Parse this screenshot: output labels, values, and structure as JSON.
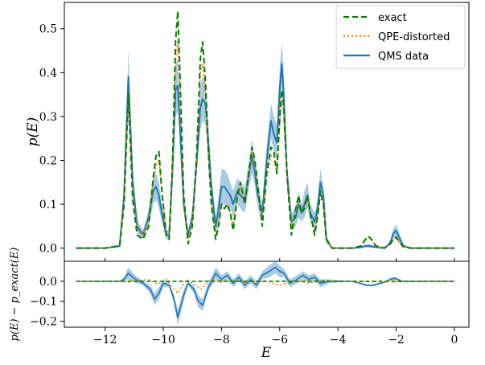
{
  "chart_data": [
    {
      "type": "line",
      "panel": "top",
      "xlim": [
        -13.4,
        0.5
      ],
      "ylim": [
        -0.03,
        0.56
      ],
      "xticks": [
        -12,
        -10,
        -8,
        -6,
        -4,
        -2,
        0
      ],
      "yticks": [
        0.0,
        0.1,
        0.2,
        0.3,
        0.4,
        0.5
      ],
      "ytick_labels": [
        "0.0",
        "0.1",
        "0.2",
        "0.3",
        "0.4",
        "0.5"
      ],
      "ylabel": "p(E)",
      "xlabel": "",
      "legend_position": "top-right",
      "legend": [
        "exact",
        "QPE-distorted",
        "QMS data"
      ],
      "series": [
        {
          "name": "exact",
          "style": "dashed",
          "color": "#008000",
          "x": [
            -13.0,
            -12.0,
            -11.5,
            -11.35,
            -11.2,
            -11.05,
            -10.9,
            -10.7,
            -10.5,
            -10.35,
            -10.25,
            -10.15,
            -10.05,
            -9.9,
            -9.8,
            -9.68,
            -9.58,
            -9.5,
            -9.42,
            -9.3,
            -9.15,
            -9.0,
            -8.85,
            -8.73,
            -8.65,
            -8.55,
            -8.45,
            -8.35,
            -8.2,
            -8.1,
            -8.0,
            -7.9,
            -7.8,
            -7.7,
            -7.6,
            -7.45,
            -7.35,
            -7.2,
            -7.05,
            -6.95,
            -6.85,
            -6.75,
            -6.6,
            -6.45,
            -6.3,
            -6.2,
            -6.1,
            -6.0,
            -5.93,
            -5.87,
            -5.75,
            -5.6,
            -5.45,
            -5.35,
            -5.25,
            -5.15,
            -5.05,
            -4.95,
            -4.8,
            -4.7,
            -4.6,
            -4.5,
            -4.4,
            -4.2,
            -3.5,
            -3.2,
            -3.05,
            -2.95,
            -2.85,
            -2.7,
            -2.4,
            -2.2,
            -2.1,
            -2.0,
            -1.9,
            -1.75,
            -1.5,
            -0.5,
            0.0
          ],
          "y": [
            0.0,
            0.0,
            0.005,
            0.1,
            0.35,
            0.11,
            0.03,
            0.02,
            0.05,
            0.16,
            0.21,
            0.22,
            0.13,
            0.03,
            0.02,
            0.2,
            0.47,
            0.54,
            0.38,
            0.12,
            0.01,
            0.05,
            0.22,
            0.43,
            0.47,
            0.38,
            0.22,
            0.1,
            0.02,
            0.05,
            0.1,
            0.09,
            0.1,
            0.08,
            0.04,
            0.12,
            0.15,
            0.1,
            0.18,
            0.23,
            0.2,
            0.14,
            0.05,
            0.17,
            0.23,
            0.22,
            0.17,
            0.3,
            0.36,
            0.33,
            0.17,
            0.03,
            0.09,
            0.12,
            0.08,
            0.09,
            0.12,
            0.08,
            0.03,
            0.07,
            0.13,
            0.1,
            0.02,
            0.0,
            0.0,
            0.005,
            0.02,
            0.027,
            0.02,
            0.005,
            0.0,
            0.01,
            0.02,
            0.025,
            0.015,
            0.003,
            0.0,
            0.0,
            0.0
          ]
        },
        {
          "name": "QPE-distorted",
          "style": "dotted",
          "color": "#ff7f0e",
          "x": [
            -13.0,
            -12.0,
            -11.5,
            -11.35,
            -11.2,
            -11.05,
            -10.9,
            -10.7,
            -10.5,
            -10.35,
            -10.25,
            -10.15,
            -10.05,
            -9.9,
            -9.8,
            -9.68,
            -9.58,
            -9.5,
            -9.42,
            -9.3,
            -9.15,
            -9.0,
            -8.85,
            -8.73,
            -8.65,
            -8.55,
            -8.45,
            -8.35,
            -8.2,
            -8.1,
            -8.0,
            -7.9,
            -7.8,
            -7.7,
            -7.6,
            -7.45,
            -7.35,
            -7.2,
            -7.05,
            -6.95,
            -6.85,
            -6.75,
            -6.6,
            -6.45,
            -6.3,
            -6.2,
            -6.1,
            -6.0,
            -5.93,
            -5.87,
            -5.75,
            -5.6,
            -5.45,
            -5.35,
            -5.25,
            -5.15,
            -5.05,
            -4.95,
            -4.8,
            -4.7,
            -4.6,
            -4.5,
            -4.4,
            -4.2,
            -3.5,
            -3.2,
            -3.05,
            -2.95,
            -2.85,
            -2.7,
            -2.4,
            -2.2,
            -2.1,
            -2.0,
            -1.9,
            -1.75,
            -1.5,
            -0.5,
            0.0
          ],
          "y": [
            0.0,
            0.0,
            0.005,
            0.1,
            0.34,
            0.12,
            0.04,
            0.03,
            0.06,
            0.15,
            0.19,
            0.2,
            0.13,
            0.04,
            0.03,
            0.19,
            0.43,
            0.47,
            0.35,
            0.12,
            0.02,
            0.06,
            0.21,
            0.4,
            0.42,
            0.35,
            0.21,
            0.1,
            0.03,
            0.06,
            0.1,
            0.09,
            0.1,
            0.08,
            0.05,
            0.12,
            0.14,
            0.1,
            0.17,
            0.22,
            0.19,
            0.14,
            0.06,
            0.16,
            0.21,
            0.21,
            0.17,
            0.28,
            0.34,
            0.31,
            0.17,
            0.04,
            0.09,
            0.11,
            0.08,
            0.09,
            0.11,
            0.08,
            0.04,
            0.07,
            0.12,
            0.1,
            0.02,
            0.0,
            0.0,
            0.005,
            0.02,
            0.025,
            0.02,
            0.005,
            0.0,
            0.008,
            0.018,
            0.022,
            0.014,
            0.003,
            0.0,
            0.0,
            0.0
          ]
        },
        {
          "name": "QMS data",
          "style": "solid",
          "color": "#1f77b4",
          "x": [
            -13.0,
            -12.0,
            -11.5,
            -11.35,
            -11.2,
            -11.05,
            -10.9,
            -10.7,
            -10.5,
            -10.35,
            -10.25,
            -10.15,
            -10.05,
            -9.9,
            -9.8,
            -9.68,
            -9.58,
            -9.5,
            -9.42,
            -9.3,
            -9.15,
            -9.0,
            -8.85,
            -8.73,
            -8.65,
            -8.55,
            -8.45,
            -8.35,
            -8.2,
            -8.1,
            -8.0,
            -7.9,
            -7.8,
            -7.7,
            -7.6,
            -7.45,
            -7.35,
            -7.2,
            -7.05,
            -6.95,
            -6.85,
            -6.75,
            -6.6,
            -6.45,
            -6.3,
            -6.2,
            -6.1,
            -6.0,
            -5.93,
            -5.87,
            -5.75,
            -5.6,
            -5.45,
            -5.35,
            -5.25,
            -5.15,
            -5.05,
            -4.95,
            -4.8,
            -4.7,
            -4.6,
            -4.5,
            -4.4,
            -4.2,
            -3.5,
            -3.2,
            -3.05,
            -2.95,
            -2.85,
            -2.7,
            -2.4,
            -2.2,
            -2.1,
            -2.0,
            -1.9,
            -1.75,
            -1.5,
            -0.5,
            0.0
          ],
          "y": [
            0.0,
            0.0,
            0.005,
            0.12,
            0.39,
            0.15,
            0.05,
            0.03,
            0.07,
            0.13,
            0.14,
            0.12,
            0.08,
            0.03,
            0.03,
            0.18,
            0.36,
            0.37,
            0.27,
            0.1,
            0.03,
            0.07,
            0.2,
            0.32,
            0.34,
            0.33,
            0.24,
            0.14,
            0.05,
            0.09,
            0.14,
            0.14,
            0.13,
            0.12,
            0.1,
            0.13,
            0.12,
            0.11,
            0.17,
            0.21,
            0.17,
            0.12,
            0.08,
            0.2,
            0.29,
            0.26,
            0.24,
            0.36,
            0.42,
            0.36,
            0.17,
            0.06,
            0.07,
            0.1,
            0.08,
            0.1,
            0.12,
            0.08,
            0.06,
            0.09,
            0.15,
            0.12,
            0.02,
            0.0,
            0.0,
            0.002,
            0.005,
            0.005,
            0.004,
            0.002,
            0.0,
            0.012,
            0.033,
            0.04,
            0.025,
            0.005,
            0.0,
            0.0,
            0.0
          ],
          "band": [
            0.0,
            0.0,
            0.004,
            0.02,
            0.06,
            0.03,
            0.015,
            0.01,
            0.02,
            0.03,
            0.03,
            0.03,
            0.02,
            0.01,
            0.01,
            0.03,
            0.06,
            0.06,
            0.05,
            0.02,
            0.01,
            0.02,
            0.03,
            0.05,
            0.05,
            0.05,
            0.04,
            0.03,
            0.02,
            0.03,
            0.04,
            0.04,
            0.04,
            0.03,
            0.03,
            0.03,
            0.03,
            0.03,
            0.03,
            0.04,
            0.03,
            0.03,
            0.02,
            0.03,
            0.04,
            0.04,
            0.04,
            0.05,
            0.05,
            0.05,
            0.03,
            0.02,
            0.02,
            0.03,
            0.02,
            0.03,
            0.03,
            0.02,
            0.02,
            0.02,
            0.03,
            0.02,
            0.01,
            0.0,
            0.0,
            0.002,
            0.004,
            0.004,
            0.003,
            0.002,
            0.0,
            0.006,
            0.012,
            0.014,
            0.01,
            0.003,
            0.0,
            0.0,
            0.0
          ]
        }
      ]
    },
    {
      "type": "line",
      "panel": "bottom",
      "xlim": [
        -13.4,
        0.5
      ],
      "ylim": [
        -0.23,
        0.1
      ],
      "xticks": [
        -12,
        -10,
        -8,
        -6,
        -4,
        -2,
        0
      ],
      "xtick_labels": [
        "−12",
        "−10",
        "−8",
        "−6",
        "−4",
        "−2",
        "0"
      ],
      "yticks": [
        0.0,
        -0.1,
        -0.2
      ],
      "ytick_labels": [
        "0.0",
        "−0.1",
        "−0.2"
      ],
      "xlabel": "E",
      "ylabel": "p(E) − p_exact(E)",
      "series": [
        {
          "name": "exact",
          "style": "dashed",
          "color": "#008000",
          "x": [
            -13.0,
            0.0
          ],
          "y": [
            0.0,
            0.0
          ]
        },
        {
          "name": "QPE-distorted",
          "style": "dotted",
          "color": "#ff7f0e",
          "x": [
            -13.0,
            -11.5,
            -11.2,
            -11.0,
            -10.5,
            -10.2,
            -9.9,
            -9.5,
            -9.2,
            -8.7,
            -8.4,
            -8.0,
            -7.5,
            -7.0,
            -6.5,
            -6.0,
            -5.5,
            -5.0,
            -4.5,
            -4.0,
            -3.0,
            -2.0,
            0.0
          ],
          "y": [
            0.0,
            0.0,
            -0.005,
            0.005,
            0.008,
            -0.015,
            0.01,
            -0.06,
            0.01,
            -0.04,
            0.005,
            0.003,
            0.0,
            -0.01,
            0.003,
            -0.02,
            0.004,
            -0.01,
            0.003,
            0.0,
            -0.002,
            -0.003,
            0.0
          ]
        },
        {
          "name": "QMS data",
          "style": "solid",
          "color": "#1f77b4",
          "x": [
            -13.0,
            -11.5,
            -11.35,
            -11.2,
            -11.0,
            -10.7,
            -10.45,
            -10.3,
            -10.15,
            -10.0,
            -9.8,
            -9.65,
            -9.5,
            -9.3,
            -9.15,
            -8.95,
            -8.8,
            -8.65,
            -8.45,
            -8.2,
            -8.0,
            -7.8,
            -7.6,
            -7.4,
            -7.2,
            -7.0,
            -6.8,
            -6.6,
            -6.35,
            -6.15,
            -6.0,
            -5.85,
            -5.65,
            -5.45,
            -5.2,
            -5.0,
            -4.8,
            -4.6,
            -4.3,
            -3.5,
            -3.0,
            -2.8,
            -2.4,
            -2.2,
            -2.05,
            -1.8,
            -1.0,
            0.0
          ],
          "y": [
            0.0,
            0.0,
            0.01,
            0.04,
            0.015,
            -0.01,
            -0.04,
            -0.09,
            -0.06,
            -0.01,
            -0.02,
            -0.08,
            -0.18,
            -0.07,
            -0.01,
            -0.04,
            -0.1,
            -0.12,
            -0.03,
            0.04,
            0.01,
            0.03,
            -0.01,
            0.02,
            -0.02,
            0.01,
            -0.02,
            0.03,
            0.05,
            0.07,
            0.05,
            0.04,
            -0.01,
            0.005,
            0.03,
            0.01,
            0.02,
            -0.01,
            0.0,
            0.0,
            -0.02,
            -0.02,
            -0.005,
            0.01,
            0.015,
            0.0,
            0.0,
            0.0
          ],
          "band": [
            0.0,
            0.0,
            0.01,
            0.03,
            0.02,
            0.01,
            0.02,
            0.03,
            0.03,
            0.02,
            0.01,
            0.02,
            0.04,
            0.03,
            0.01,
            0.02,
            0.03,
            0.03,
            0.02,
            0.03,
            0.02,
            0.02,
            0.02,
            0.02,
            0.02,
            0.02,
            0.02,
            0.02,
            0.03,
            0.03,
            0.03,
            0.02,
            0.02,
            0.02,
            0.02,
            0.02,
            0.02,
            0.02,
            0.01,
            0.0,
            0.005,
            0.005,
            0.003,
            0.006,
            0.008,
            0.003,
            0.0,
            0.0
          ]
        }
      ]
    }
  ]
}
